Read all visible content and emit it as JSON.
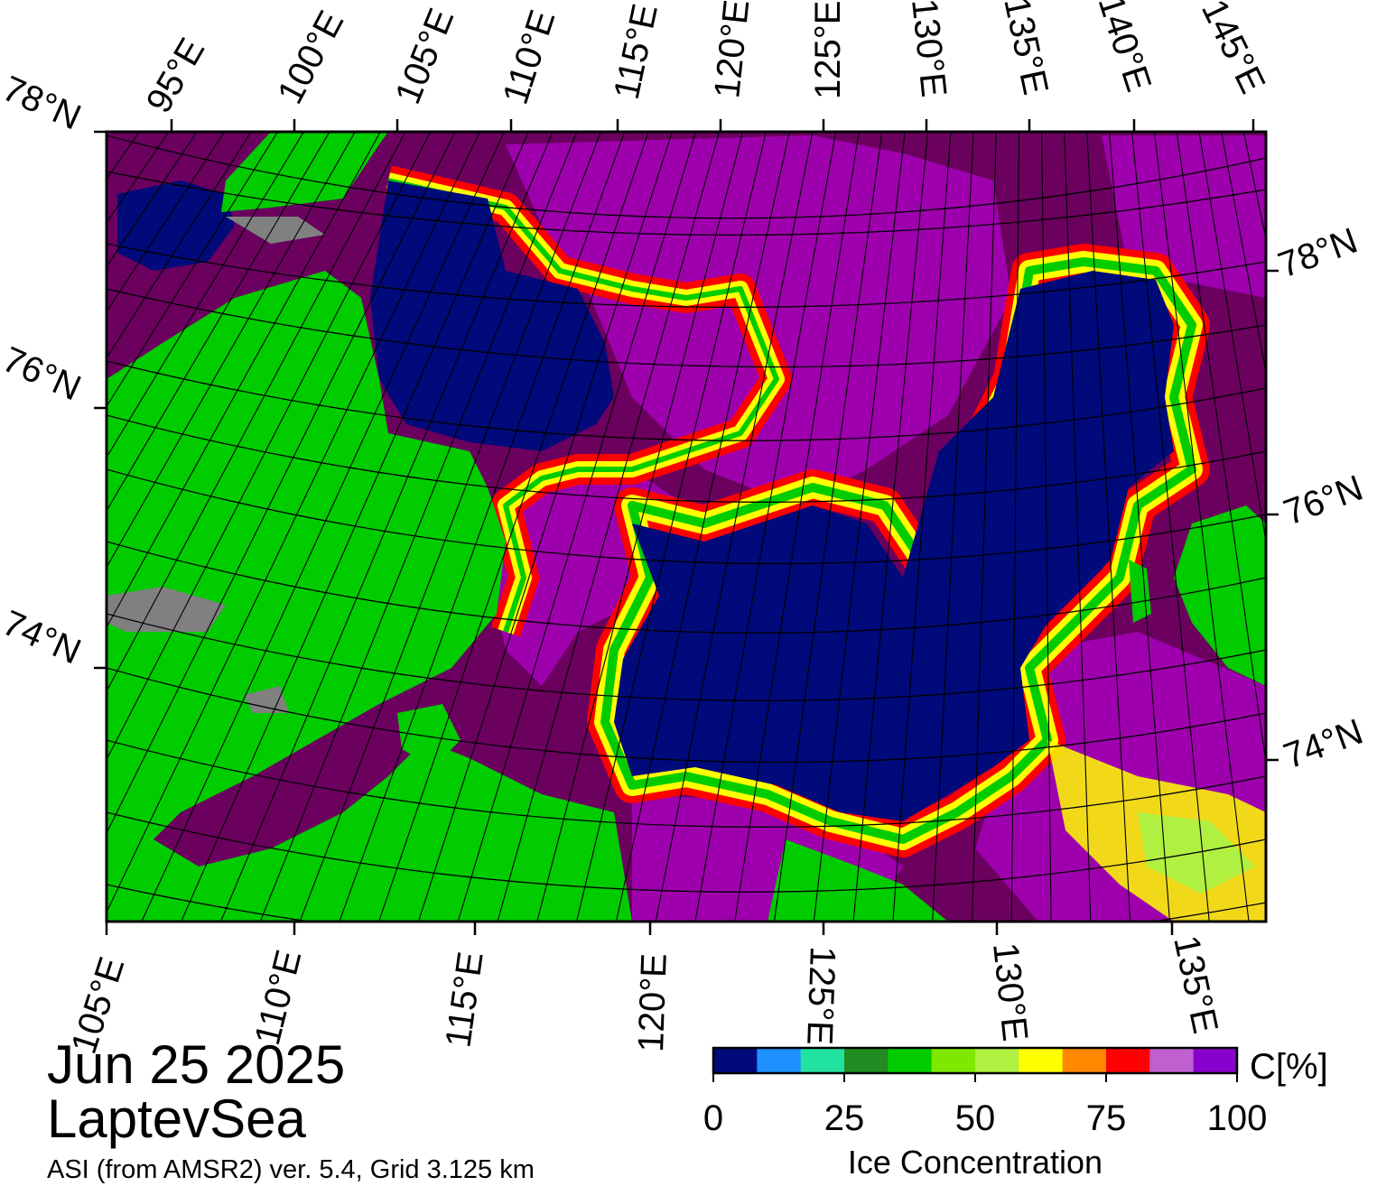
{
  "map": {
    "region": "LaptevSea",
    "date": "Jun 25 2025",
    "product": "ASI (from AMSR2) ver. 5.4,  Grid 3.125 km",
    "top_lon_labels": [
      "95°E",
      "100°E",
      "105°E",
      "110°E",
      "115°E",
      "120°E",
      "125°E",
      "130°E",
      "135°E",
      "140°E",
      "145°E"
    ],
    "bottom_lon_labels": [
      "105°E",
      "110°E",
      "115°E",
      "120°E",
      "125°E",
      "130°E",
      "135°E"
    ],
    "left_lat_labels": [
      "78°N",
      "76°N",
      "74°N"
    ],
    "right_lat_labels": [
      "78°N",
      "76°N",
      "74°N"
    ],
    "colors": {
      "water": "#000a7a",
      "land": "#00cc00",
      "land_ice": "#808080",
      "ice_high": "#6b005f",
      "ice_mid": "#b000c8",
      "ice_edge_red": "#ff0000",
      "ice_edge_yellow": "#ffff00"
    }
  },
  "colorbar": {
    "title": "Ice Concentration",
    "unit": "C[%]",
    "ticks": [
      "0",
      "25",
      "50",
      "75",
      "100"
    ],
    "range": [
      0,
      100
    ],
    "colors": [
      "#000a7a",
      "#1e90ff",
      "#22e2a0",
      "#228b22",
      "#00cc00",
      "#7fe800",
      "#b0f040",
      "#ffff00",
      "#ff8800",
      "#ff0000",
      "#c060d0",
      "#8800cc"
    ]
  }
}
